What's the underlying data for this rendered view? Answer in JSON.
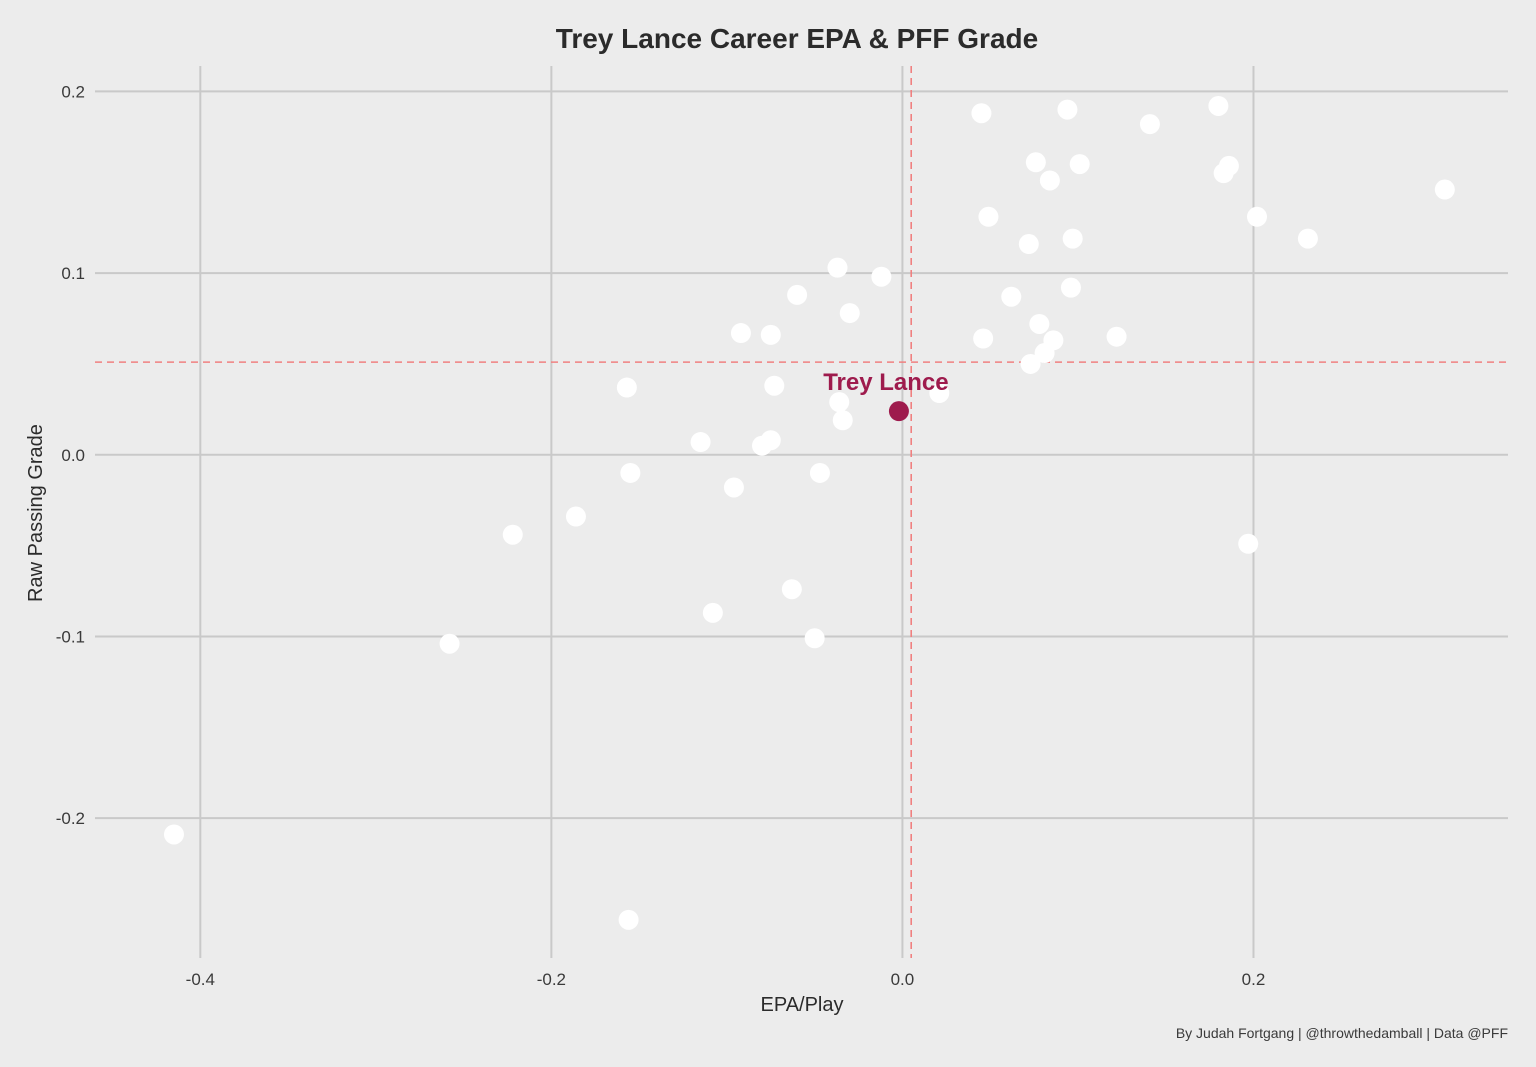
{
  "chart_data": {
    "type": "scatter",
    "title": "Trey Lance Career EPA & PFF Grade",
    "xlabel": "EPA/Play",
    "ylabel": "Raw Passing Grade",
    "caption": "By Judah Fortgang | @throwthedamball | Data @PFF",
    "xlim": [
      -0.46,
      0.345
    ],
    "ylim": [
      -0.277,
      0.214
    ],
    "x_ticks": [
      -0.4,
      -0.2,
      0.0,
      0.2
    ],
    "x_tick_labels": [
      "-0.4",
      "-0.2",
      "0.0",
      "0.2"
    ],
    "y_ticks": [
      0.2,
      0.1,
      0.0,
      -0.1,
      -0.2
    ],
    "y_tick_labels": [
      "0.2",
      "0.1",
      "0.0",
      "-0.1",
      "-0.2"
    ],
    "grid": true,
    "reference_lines": {
      "x": 0.005,
      "y": 0.051,
      "color": "#f08080",
      "style": "dashed"
    },
    "point_color": "#ffffff",
    "points": [
      {
        "x": 0.045,
        "y": 0.188
      },
      {
        "x": 0.094,
        "y": 0.19
      },
      {
        "x": 0.141,
        "y": 0.182
      },
      {
        "x": 0.18,
        "y": 0.192
      },
      {
        "x": 0.076,
        "y": 0.161
      },
      {
        "x": 0.101,
        "y": 0.16
      },
      {
        "x": 0.186,
        "y": 0.159
      },
      {
        "x": 0.183,
        "y": 0.155
      },
      {
        "x": 0.084,
        "y": 0.151
      },
      {
        "x": 0.309,
        "y": 0.146
      },
      {
        "x": 0.049,
        "y": 0.131
      },
      {
        "x": 0.202,
        "y": 0.131
      },
      {
        "x": 0.072,
        "y": 0.116
      },
      {
        "x": 0.097,
        "y": 0.119
      },
      {
        "x": 0.231,
        "y": 0.119
      },
      {
        "x": -0.037,
        "y": 0.103
      },
      {
        "x": -0.012,
        "y": 0.098
      },
      {
        "x": -0.06,
        "y": 0.088
      },
      {
        "x": 0.062,
        "y": 0.087
      },
      {
        "x": 0.096,
        "y": 0.092
      },
      {
        "x": -0.03,
        "y": 0.078
      },
      {
        "x": -0.092,
        "y": 0.067
      },
      {
        "x": -0.075,
        "y": 0.066
      },
      {
        "x": 0.046,
        "y": 0.064
      },
      {
        "x": 0.078,
        "y": 0.072
      },
      {
        "x": 0.086,
        "y": 0.063
      },
      {
        "x": 0.122,
        "y": 0.065
      },
      {
        "x": 0.081,
        "y": 0.056
      },
      {
        "x": 0.073,
        "y": 0.05
      },
      {
        "x": -0.157,
        "y": 0.037
      },
      {
        "x": -0.073,
        "y": 0.038
      },
      {
        "x": -0.036,
        "y": 0.029
      },
      {
        "x": -0.034,
        "y": 0.019
      },
      {
        "x": 0.021,
        "y": 0.034
      },
      {
        "x": -0.115,
        "y": 0.007
      },
      {
        "x": -0.08,
        "y": 0.005
      },
      {
        "x": -0.075,
        "y": 0.008
      },
      {
        "x": -0.155,
        "y": -0.01
      },
      {
        "x": -0.047,
        "y": -0.01
      },
      {
        "x": -0.096,
        "y": -0.018
      },
      {
        "x": -0.186,
        "y": -0.034
      },
      {
        "x": -0.222,
        "y": -0.044
      },
      {
        "x": 0.197,
        "y": -0.049
      },
      {
        "x": -0.063,
        "y": -0.074
      },
      {
        "x": -0.108,
        "y": -0.087
      },
      {
        "x": -0.05,
        "y": -0.101
      },
      {
        "x": -0.258,
        "y": -0.104
      },
      {
        "x": -0.415,
        "y": -0.209
      },
      {
        "x": -0.156,
        "y": -0.256
      }
    ],
    "highlight": {
      "label": "Trey Lance",
      "x": -0.002,
      "y": 0.024,
      "color": "#9e1b4d"
    }
  }
}
